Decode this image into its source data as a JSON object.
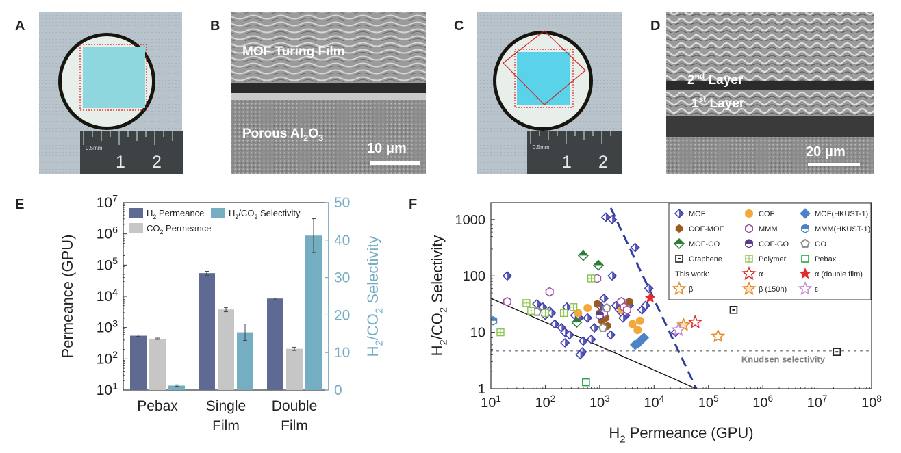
{
  "panels": {
    "A": {
      "letter": "A",
      "ruler_label": "0.5mm",
      "ruler_nums": [
        "1",
        "2"
      ]
    },
    "B": {
      "letter": "B",
      "top_text": "MOF Turing Film",
      "bottom_text_pre": "Porous Al",
      "bottom_sub1": "2",
      "bottom_mid": "O",
      "bottom_sub2": "3",
      "scale": "10 μm"
    },
    "C": {
      "letter": "C",
      "ruler_label": "0.5mm",
      "ruler_nums": [
        "1",
        "2"
      ]
    },
    "D": {
      "letter": "D",
      "layer2": "2",
      "layer2_sup": "nd",
      "layer2_rest": " Layer",
      "layer1": "1",
      "layer1_sup": "st",
      "layer1_rest": " Layer",
      "scale": "20 μm"
    },
    "E": {
      "letter": "E"
    },
    "F": {
      "letter": "F"
    }
  },
  "colors": {
    "h2": "#5e6a91",
    "co2": "#c6c6c6",
    "sel": "#75adc3",
    "mof": "#3e3eab",
    "cof": "#f3a83c",
    "hkust": "#4a83c6",
    "comof": "#9a5b22",
    "mmm": "#a24ea2",
    "mofgo": "#2f7b3a",
    "cogo": "#5c3c8c",
    "go": "#8a8a8a",
    "graphene": "#222222",
    "polymer": "#8cc34a",
    "pebax": "#2aa54a",
    "alpha": "#e32b2b",
    "beta": "#e88a26",
    "eps": "#c68ad8"
  },
  "chart_data": [
    {
      "type": "bar",
      "panel": "E",
      "categories": [
        "Pebax",
        "Single Film",
        "Double Film"
      ],
      "category_lines": [
        [
          "Pebax"
        ],
        [
          "Single",
          "Film"
        ],
        [
          "Double",
          "Film"
        ]
      ],
      "series": [
        {
          "name": "H2 Permeance",
          "name_main": "H",
          "name_sub": "2",
          "name_rest": " Permeance",
          "axis": "left",
          "values": [
            550,
            55000,
            8500
          ],
          "errors": [
            30,
            8000,
            300
          ]
        },
        {
          "name": "CO2 Permeance",
          "name_main": "CO",
          "name_sub": "2",
          "name_rest": " Permeance",
          "axis": "left",
          "values": [
            440,
            3800,
            210
          ],
          "errors": [
            20,
            600,
            25
          ]
        },
        {
          "name": "H2/CO2 Selectivity",
          "name_main": "H",
          "name_sub": "2",
          "name_rest": "/CO",
          "name_sub2": "2",
          "name_rest2": " Selectivity",
          "axis": "right",
          "values": [
            1.2,
            15.4,
            41.2
          ],
          "errors": [
            0.2,
            2.2,
            4.5
          ]
        }
      ],
      "ylabel_left": "Permeance (GPU)",
      "ylabel_right_parts": [
        "H",
        "2",
        "/CO",
        "2",
        " Selectivity"
      ],
      "ylim_left": [
        10,
        10000000
      ],
      "ylim_right": [
        0,
        50
      ],
      "yticks_left": [
        {
          "base": "10",
          "exp": "1"
        },
        {
          "base": "10",
          "exp": "2"
        },
        {
          "base": "10",
          "exp": "3"
        },
        {
          "base": "10",
          "exp": "4"
        },
        {
          "base": "10",
          "exp": "5"
        },
        {
          "base": "10",
          "exp": "6"
        },
        {
          "base": "10",
          "exp": "7"
        }
      ],
      "yticks_right": [
        "0",
        "10",
        "20",
        "30",
        "40",
        "50"
      ]
    },
    {
      "type": "scatter",
      "panel": "F",
      "xlabel_parts": [
        "H",
        "2",
        " Permeance (GPU)"
      ],
      "ylabel_parts": [
        "H",
        "2",
        "/CO",
        "2",
        " Selectivity"
      ],
      "xlim": [
        10,
        100000000
      ],
      "ylim": [
        1,
        2000
      ],
      "xticks": [
        {
          "base": "10",
          "exp": "1"
        },
        {
          "base": "10",
          "exp": "2"
        },
        {
          "base": "10",
          "exp": "3"
        },
        {
          "base": "10",
          "exp": "4"
        },
        {
          "base": "10",
          "exp": "5"
        },
        {
          "base": "10",
          "exp": "6"
        },
        {
          "base": "10",
          "exp": "7"
        },
        {
          "base": "10",
          "exp": "8"
        }
      ],
      "yticks": [
        "1",
        "10",
        "100",
        "1000"
      ],
      "knudsen_label": "Knudsen selectivity",
      "knudsen_value": 4.7,
      "robeson_line": [
        [
          10,
          40
        ],
        [
          60000,
          1
        ]
      ],
      "dashed_line": [
        [
          1600,
          1600
        ],
        [
          60000,
          1
        ]
      ],
      "this_work_label": "This work:",
      "legend": [
        {
          "label": "MOF",
          "marker": "diamond-hollow",
          "color": "mof"
        },
        {
          "label": "COF",
          "marker": "circle",
          "color": "cof"
        },
        {
          "label": "MOF(HKUST-1)",
          "marker": "diamond",
          "color": "hkust"
        },
        {
          "label": "COF-MOF",
          "marker": "hexagon",
          "color": "comof"
        },
        {
          "label": "MMM",
          "marker": "hexagon-hollow",
          "color": "mmm"
        },
        {
          "label": "MMM(HKUST-1)",
          "marker": "hexagon-half",
          "color": "hkust"
        },
        {
          "label": "MOF-GO",
          "marker": "diamond-half",
          "color": "mofgo"
        },
        {
          "label": "COF-GO",
          "marker": "hexagon-half",
          "color": "cogo"
        },
        {
          "label": "GO",
          "marker": "pentagon-hollow",
          "color": "go"
        },
        {
          "label": "Graphene",
          "marker": "square-dot",
          "color": "graphene"
        },
        {
          "label": "Polymer",
          "marker": "square-grid",
          "color": "polymer"
        },
        {
          "label": "Pebax",
          "marker": "square-hollow",
          "color": "pebax"
        },
        {
          "label": "α",
          "marker": "star-hollow",
          "color": "alpha"
        },
        {
          "label": "α (double film)",
          "marker": "star",
          "color": "alpha"
        },
        {
          "label": "β",
          "marker": "star-hollow",
          "color": "beta"
        },
        {
          "label": "β (150h)",
          "marker": "star-half",
          "color": "beta"
        },
        {
          "label": "ε",
          "marker": "star-hollow",
          "color": "eps"
        }
      ],
      "points": [
        {
          "s": "MOF",
          "x": 20,
          "y": 100
        },
        {
          "s": "MOF",
          "x": 70,
          "y": 32
        },
        {
          "s": "MOF",
          "x": 90,
          "y": 28
        },
        {
          "s": "MOF",
          "x": 120,
          "y": 24
        },
        {
          "s": "MOF",
          "x": 100,
          "y": 20
        },
        {
          "s": "MOF",
          "x": 130,
          "y": 22
        },
        {
          "s": "MOF",
          "x": 150,
          "y": 14
        },
        {
          "s": "MOF",
          "x": 200,
          "y": 12
        },
        {
          "s": "MOF",
          "x": 230,
          "y": 10
        },
        {
          "s": "MOF",
          "x": 250,
          "y": 28
        },
        {
          "s": "MOF",
          "x": 230,
          "y": 6.5
        },
        {
          "s": "MOF",
          "x": 280,
          "y": 9
        },
        {
          "s": "MOF",
          "x": 350,
          "y": 20
        },
        {
          "s": "MOF",
          "x": 420,
          "y": 18
        },
        {
          "s": "MOF",
          "x": 480,
          "y": 4.5
        },
        {
          "s": "MOF",
          "x": 500,
          "y": 7
        },
        {
          "s": "MOF",
          "x": 440,
          "y": 4
        },
        {
          "s": "MOF",
          "x": 600,
          "y": 18
        },
        {
          "s": "MOF",
          "x": 700,
          "y": 7.5
        },
        {
          "s": "MOF",
          "x": 800,
          "y": 12
        },
        {
          "s": "MOF",
          "x": 1000,
          "y": 30
        },
        {
          "s": "MOF",
          "x": 1100,
          "y": 22
        },
        {
          "s": "MOF",
          "x": 1200,
          "y": 18
        },
        {
          "s": "MOF",
          "x": 1300,
          "y": 1100
        },
        {
          "s": "MOF",
          "x": 1700,
          "y": 1000
        },
        {
          "s": "MOF",
          "x": 1700,
          "y": 100
        },
        {
          "s": "MOF",
          "x": 1600,
          "y": 9
        },
        {
          "s": "MOF",
          "x": 2000,
          "y": 30
        },
        {
          "s": "MOF",
          "x": 2300,
          "y": 25
        },
        {
          "s": "MOF",
          "x": 2600,
          "y": 22
        },
        {
          "s": "MOF",
          "x": 3000,
          "y": 20
        },
        {
          "s": "MOF",
          "x": 3500,
          "y": 30
        },
        {
          "s": "MOF",
          "x": 4500,
          "y": 320
        },
        {
          "s": "MOF",
          "x": 6000,
          "y": 25
        },
        {
          "s": "MOF",
          "x": 7000,
          "y": 30
        },
        {
          "s": "MOF",
          "x": 8000,
          "y": 60
        },
        {
          "s": "MOF",
          "x": 25000,
          "y": 10
        },
        {
          "s": "MOF",
          "x": 1200,
          "y": 40
        },
        {
          "s": "MOF",
          "x": 2700,
          "y": 18
        },
        {
          "s": "COF",
          "x": 400,
          "y": 22
        },
        {
          "s": "COF",
          "x": 600,
          "y": 27
        },
        {
          "s": "COF",
          "x": 2500,
          "y": 25
        },
        {
          "s": "COF",
          "x": 3000,
          "y": 30
        },
        {
          "s": "COF",
          "x": 4000,
          "y": 14
        },
        {
          "s": "COF",
          "x": 5000,
          "y": 11
        },
        {
          "s": "COF",
          "x": 5500,
          "y": 16
        },
        {
          "s": "MOF(HKUST-1)",
          "x": 4500,
          "y": 6
        },
        {
          "s": "MOF(HKUST-1)",
          "x": 5200,
          "y": 6.5
        },
        {
          "s": "MOF(HKUST-1)",
          "x": 6000,
          "y": 7.5
        },
        {
          "s": "MOF(HKUST-1)",
          "x": 6500,
          "y": 8
        },
        {
          "s": "COF-MOF",
          "x": 900,
          "y": 32
        },
        {
          "s": "COF-MOF",
          "x": 1000,
          "y": 22
        },
        {
          "s": "COF-MOF",
          "x": 1100,
          "y": 16
        },
        {
          "s": "COF-MOF",
          "x": 1300,
          "y": 18
        },
        {
          "s": "COF-MOF",
          "x": 1400,
          "y": 13
        },
        {
          "s": "COF-MOF",
          "x": 3500,
          "y": 35
        },
        {
          "s": "MMM",
          "x": 20,
          "y": 35
        },
        {
          "s": "MMM",
          "x": 120,
          "y": 52
        },
        {
          "s": "MMM",
          "x": 900,
          "y": 90
        },
        {
          "s": "MMM",
          "x": 1200,
          "y": 22
        },
        {
          "s": "MMM",
          "x": 2500,
          "y": 35
        },
        {
          "s": "MMM",
          "x": 2800,
          "y": 28
        },
        {
          "s": "MMM",
          "x": 3200,
          "y": 25
        },
        {
          "s": "MMM(HKUST-1)",
          "x": 11,
          "y": 16
        },
        {
          "s": "MOF-GO",
          "x": 500,
          "y": 230
        },
        {
          "s": "MOF-GO",
          "x": 950,
          "y": 155
        },
        {
          "s": "MOF-GO",
          "x": 380,
          "y": 15
        },
        {
          "s": "COF-GO",
          "x": 1000,
          "y": 20
        },
        {
          "s": "GO",
          "x": 70,
          "y": 23
        },
        {
          "s": "GO",
          "x": 1150,
          "y": 12
        },
        {
          "s": "GO",
          "x": 1350,
          "y": 27
        },
        {
          "s": "Graphene",
          "x": 290000,
          "y": 25
        },
        {
          "s": "Graphene",
          "x": 23000000,
          "y": 4.5
        },
        {
          "s": "Polymer",
          "x": 15,
          "y": 10
        },
        {
          "s": "Polymer",
          "x": 45,
          "y": 33
        },
        {
          "s": "Polymer",
          "x": 55,
          "y": 24
        },
        {
          "s": "Polymer",
          "x": 100,
          "y": 22
        },
        {
          "s": "Polymer",
          "x": 220,
          "y": 22
        },
        {
          "s": "Polymer",
          "x": 330,
          "y": 28
        },
        {
          "s": "Polymer",
          "x": 700,
          "y": 90
        },
        {
          "s": "Pebax",
          "x": 560,
          "y": 1.3
        },
        {
          "s": "α",
          "x": 57000,
          "y": 15
        },
        {
          "s": "α (double film)",
          "x": 8500,
          "y": 41
        },
        {
          "s": "β",
          "x": 150000,
          "y": 8.5
        },
        {
          "s": "β (150h)",
          "x": 35000,
          "y": 13.5
        },
        {
          "s": "ε",
          "x": 28000,
          "y": 11
        }
      ]
    }
  ]
}
